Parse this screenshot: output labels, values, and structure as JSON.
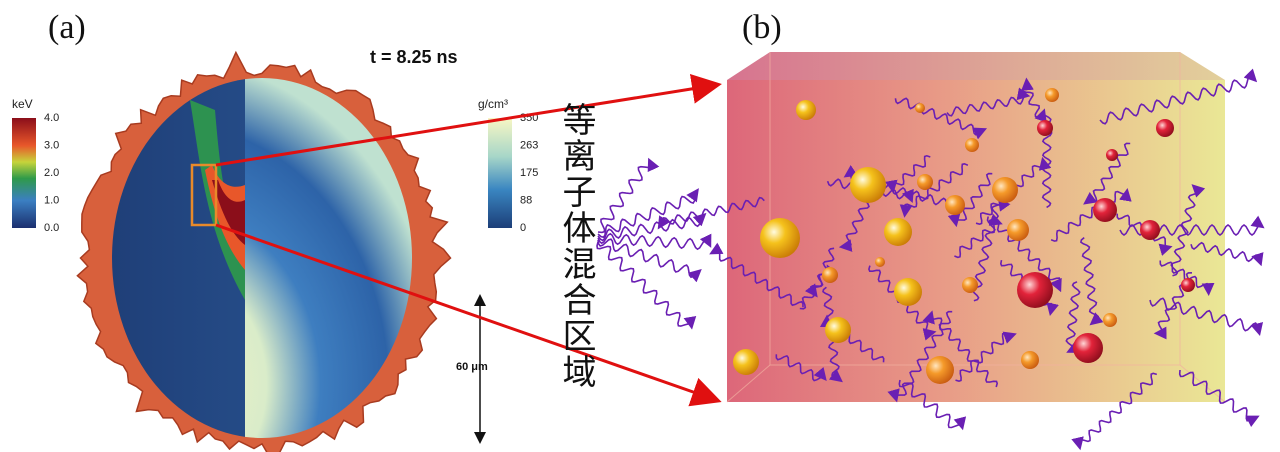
{
  "panels": [
    {
      "label": "(a)",
      "time_label": "t = 8.25 ns",
      "colorbars": [
        {
          "title": "keV",
          "ticks": [
            "4.0",
            "3.0",
            "2.0",
            "1.0",
            "0.0"
          ]
        },
        {
          "title": "g/cm³",
          "ticks": [
            "350",
            "263",
            "175",
            "88",
            "0"
          ]
        }
      ],
      "scale_bar": "60 μm"
    },
    {
      "label": "(b)"
    }
  ],
  "annotation": "等离子体混合区域"
}
